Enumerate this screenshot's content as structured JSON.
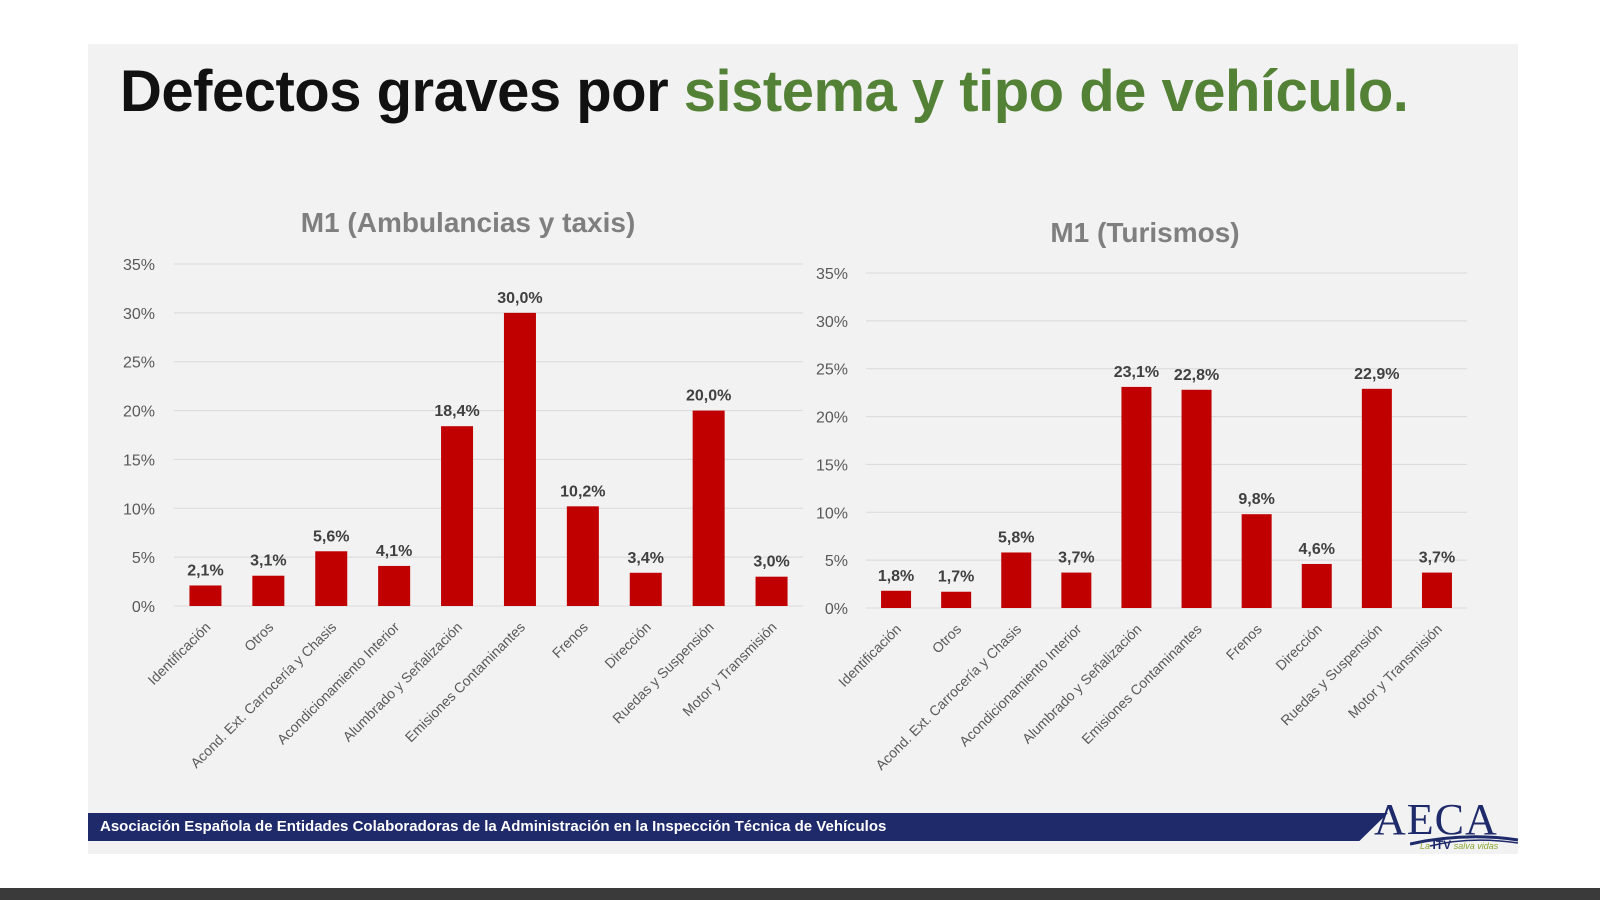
{
  "slide": {
    "title_part1": "Defectos graves por ",
    "title_part2": "sistema y tipo de vehículo.",
    "footer": "Asociación Española de Entidades Colaboradoras de la Administración en la Inspección Técnica de Vehículos",
    "logo": {
      "name": "AECA",
      "tagline_pre": "La ",
      "tagline_brand": "ITV",
      "tagline_post": " salva vidas"
    },
    "colors": {
      "title_black": "#111111",
      "title_green": "#538135",
      "bar": "#c00000",
      "footer": "#1f2a6b"
    }
  },
  "chart_data": [
    {
      "type": "bar",
      "title": "M1 (Ambulancias y taxis)",
      "categories": [
        "Identificación",
        "Otros",
        "Acond. Ext. Carrocería y Chasis",
        "Acondicionamiento Interior",
        "Alumbrado y Señalización",
        "Emisiones Contaminantes",
        "Frenos",
        "Dirección",
        "Ruedas y Suspensión",
        "Motor y Transmisión"
      ],
      "values": [
        2.1,
        3.1,
        5.6,
        4.1,
        18.4,
        30.0,
        10.2,
        3.4,
        20.0,
        3.0
      ],
      "data_labels": [
        "2,1%",
        "3,1%",
        "5,6%",
        "4,1%",
        "18,4%",
        "30,0%",
        "10,2%",
        "3,4%",
        "20,0%",
        "3,0%"
      ],
      "yticks": [
        "0%",
        "5%",
        "10%",
        "15%",
        "20%",
        "25%",
        "30%",
        "35%"
      ],
      "ylim": [
        0,
        35
      ],
      "grid": true,
      "legend": "none",
      "color": "#c00000"
    },
    {
      "type": "bar",
      "title": "M1 (Turismos)",
      "categories": [
        "Identificación",
        "Otros",
        "Acond. Ext. Carrocería y Chasis",
        "Acondicionamiento Interior",
        "Alumbrado y Señalización",
        "Emisiones Contaminantes",
        "Frenos",
        "Dirección",
        "Ruedas y Suspensión",
        "Motor y Transmisión"
      ],
      "values": [
        1.8,
        1.7,
        5.8,
        3.7,
        23.1,
        22.8,
        9.8,
        4.6,
        22.9,
        3.7
      ],
      "data_labels": [
        "1,8%",
        "1,7%",
        "5,8%",
        "3,7%",
        "23,1%",
        "22,8%",
        "9,8%",
        "4,6%",
        "22,9%",
        "3,7%"
      ],
      "yticks": [
        "0%",
        "5%",
        "10%",
        "15%",
        "20%",
        "25%",
        "30%",
        "35%"
      ],
      "ylim": [
        0,
        35
      ],
      "grid": true,
      "legend": "none",
      "color": "#c00000"
    }
  ]
}
